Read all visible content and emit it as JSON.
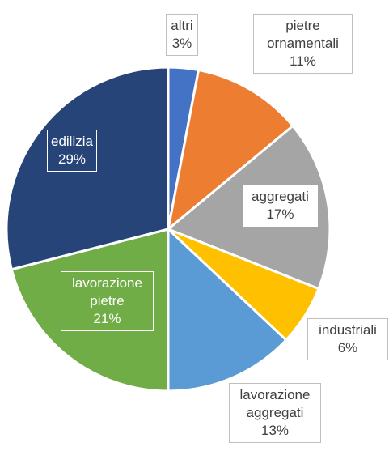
{
  "chart_data": {
    "type": "pie",
    "categories": [
      "altri",
      "pietre ornamentali",
      "aggregati",
      "industriali",
      "lavorazione aggregati",
      "lavorazione pietre",
      "edilizia"
    ],
    "values": [
      3,
      11,
      17,
      6,
      13,
      21,
      29
    ],
    "value_labels": [
      "3%",
      "11%",
      "17%",
      "6%",
      "13%",
      "21%",
      "29%"
    ],
    "colors": [
      "#4472c4",
      "#ed7d31",
      "#a5a5a5",
      "#ffc000",
      "#5b9bd5",
      "#70ad47",
      "#264478"
    ]
  }
}
